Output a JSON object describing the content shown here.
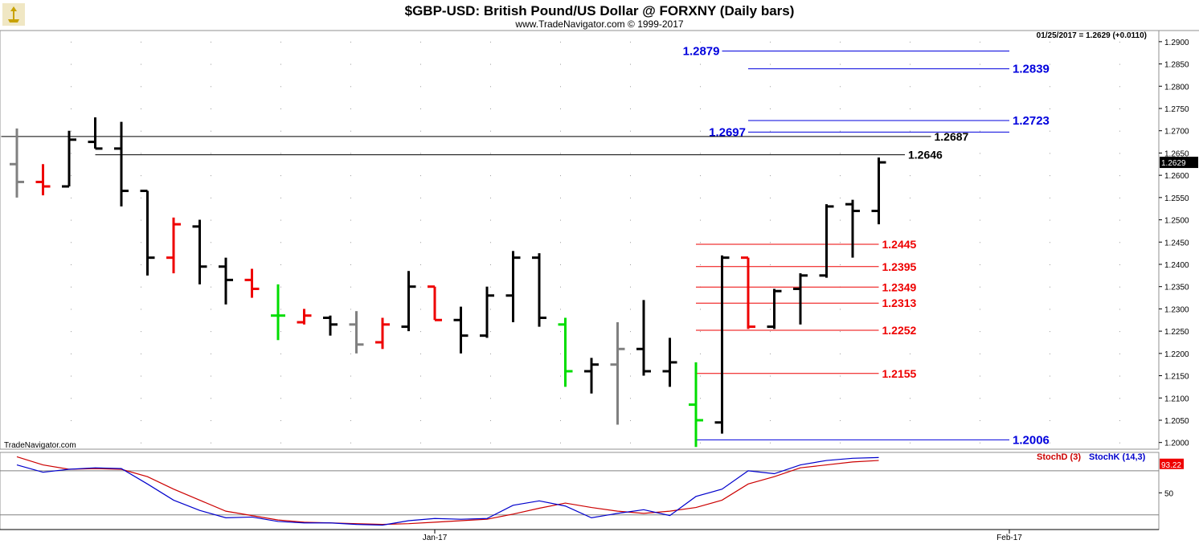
{
  "header": {
    "title": "$GBP-USD:  British Pound/US Dollar @ FORXNY  (Daily bars)",
    "copyright": "www.TradeNavigator.com © 1999-2017",
    "quote": "01/25/2017 = 1.2629 (+0.0110)",
    "watermark": "TradeNavigator.com"
  },
  "colors": {
    "up": "#000000",
    "down": "#ee0000",
    "neutral": "#808080",
    "green": "#00dd00",
    "blue": "#0000dd",
    "red": "#ee0000",
    "stochD": "#cc0000",
    "stochK": "#0000cc"
  },
  "chart_data": {
    "type": "ohlc",
    "ylim": [
      1.1985,
      1.2925
    ],
    "y_ticks": [
      "1.2000",
      "1.2050",
      "1.2100",
      "1.2150",
      "1.2200",
      "1.2250",
      "1.2300",
      "1.2350",
      "1.2400",
      "1.2450",
      "1.2500",
      "1.2550",
      "1.2600",
      "1.2650",
      "1.2700",
      "1.2750",
      "1.2800",
      "1.2850",
      "1.2900"
    ],
    "last_price": "1.2629",
    "x_labels": [
      {
        "label": "Jan-17",
        "bar": 16
      },
      {
        "label": "Feb-17",
        "bar": 38
      }
    ],
    "bars": [
      {
        "o": 1.2625,
        "h": 1.2705,
        "l": 1.255,
        "c": 1.2585,
        "color": "neutral"
      },
      {
        "o": 1.2585,
        "h": 1.2625,
        "l": 1.2555,
        "c": 1.2575,
        "color": "down"
      },
      {
        "o": 1.2575,
        "h": 1.27,
        "l": 1.2575,
        "c": 1.268,
        "color": "up"
      },
      {
        "o": 1.2675,
        "h": 1.273,
        "l": 1.266,
        "c": 1.266,
        "color": "up"
      },
      {
        "o": 1.266,
        "h": 1.272,
        "l": 1.253,
        "c": 1.2565,
        "color": "up"
      },
      {
        "o": 1.2565,
        "h": 1.2565,
        "l": 1.2375,
        "c": 1.2415,
        "color": "up"
      },
      {
        "o": 1.2415,
        "h": 1.2505,
        "l": 1.238,
        "c": 1.249,
        "color": "down"
      },
      {
        "o": 1.2485,
        "h": 1.25,
        "l": 1.2355,
        "c": 1.2395,
        "color": "up"
      },
      {
        "o": 1.2395,
        "h": 1.2415,
        "l": 1.231,
        "c": 1.2365,
        "color": "up"
      },
      {
        "o": 1.2365,
        "h": 1.239,
        "l": 1.2325,
        "c": 1.2345,
        "color": "down"
      },
      {
        "o": 1.2285,
        "h": 1.2355,
        "l": 1.223,
        "c": 1.2285,
        "color": "green"
      },
      {
        "o": 1.227,
        "h": 1.23,
        "l": 1.2265,
        "c": 1.2285,
        "color": "down"
      },
      {
        "o": 1.228,
        "h": 1.2285,
        "l": 1.224,
        "c": 1.2265,
        "color": "up"
      },
      {
        "o": 1.2265,
        "h": 1.2295,
        "l": 1.22,
        "c": 1.222,
        "color": "neutral"
      },
      {
        "o": 1.2225,
        "h": 1.228,
        "l": 1.221,
        "c": 1.2265,
        "color": "down"
      },
      {
        "o": 1.226,
        "h": 1.2385,
        "l": 1.225,
        "c": 1.235,
        "color": "up"
      },
      {
        "o": 1.235,
        "h": 1.235,
        "l": 1.2275,
        "c": 1.2275,
        "color": "down"
      },
      {
        "o": 1.2275,
        "h": 1.2305,
        "l": 1.22,
        "c": 1.224,
        "color": "up"
      },
      {
        "o": 1.224,
        "h": 1.235,
        "l": 1.2235,
        "c": 1.233,
        "color": "up"
      },
      {
        "o": 1.233,
        "h": 1.243,
        "l": 1.227,
        "c": 1.2415,
        "color": "up"
      },
      {
        "o": 1.2415,
        "h": 1.2425,
        "l": 1.226,
        "c": 1.228,
        "color": "up"
      },
      {
        "o": 1.2265,
        "h": 1.228,
        "l": 1.2125,
        "c": 1.216,
        "color": "green"
      },
      {
        "o": 1.216,
        "h": 1.219,
        "l": 1.211,
        "c": 1.2175,
        "color": "up"
      },
      {
        "o": 1.2175,
        "h": 1.227,
        "l": 1.204,
        "c": 1.221,
        "color": "neutral"
      },
      {
        "o": 1.221,
        "h": 1.232,
        "l": 1.215,
        "c": 1.216,
        "color": "up"
      },
      {
        "o": 1.216,
        "h": 1.2235,
        "l": 1.2125,
        "c": 1.218,
        "color": "up"
      },
      {
        "o": 1.2085,
        "h": 1.218,
        "l": 1.199,
        "c": 1.205,
        "color": "green"
      },
      {
        "o": 1.2045,
        "h": 1.242,
        "l": 1.202,
        "c": 1.2415,
        "color": "up"
      },
      {
        "o": 1.2415,
        "h": 1.2415,
        "l": 1.2255,
        "c": 1.226,
        "color": "down"
      },
      {
        "o": 1.226,
        "h": 1.2345,
        "l": 1.2255,
        "c": 1.234,
        "color": "up"
      },
      {
        "o": 1.2345,
        "h": 1.238,
        "l": 1.2265,
        "c": 1.2375,
        "color": "up"
      },
      {
        "o": 1.2375,
        "h": 1.2535,
        "l": 1.237,
        "c": 1.253,
        "color": "up"
      },
      {
        "o": 1.2535,
        "h": 1.2545,
        "l": 1.2415,
        "c": 1.252,
        "color": "up"
      },
      {
        "o": 1.252,
        "h": 1.264,
        "l": 1.249,
        "c": 1.2629,
        "color": "up"
      }
    ],
    "levels": [
      {
        "value": 1.2879,
        "label": "1.2879",
        "color": "blue",
        "from_bar": 27,
        "to_bar": 38,
        "label_side": "left"
      },
      {
        "value": 1.2839,
        "label": "1.2839",
        "color": "blue",
        "from_bar": 28,
        "to_bar": 38,
        "label_side": "right"
      },
      {
        "value": 1.2723,
        "label": "1.2723",
        "color": "blue",
        "from_bar": 28,
        "to_bar": 38,
        "label_side": "right"
      },
      {
        "value": 1.2697,
        "label": "1.2697",
        "color": "blue",
        "from_bar": 28,
        "to_bar": 38,
        "label_side": "left"
      },
      {
        "value": 1.2687,
        "label": "1.2687",
        "color": "up",
        "from_bar": -0.6,
        "to_bar": 35,
        "label_side": "right"
      },
      {
        "value": 1.2646,
        "label": "1.2646",
        "color": "up",
        "from_bar": 3,
        "to_bar": 34,
        "label_side": "right"
      },
      {
        "value": 1.2445,
        "label": "1.2445",
        "color": "red",
        "from_bar": 26,
        "to_bar": 33,
        "label_side": "right"
      },
      {
        "value": 1.2395,
        "label": "1.2395",
        "color": "red",
        "from_bar": 26,
        "to_bar": 33,
        "label_side": "right"
      },
      {
        "value": 1.2349,
        "label": "1.2349",
        "color": "red",
        "from_bar": 26,
        "to_bar": 33,
        "label_side": "right"
      },
      {
        "value": 1.2313,
        "label": "1.2313",
        "color": "red",
        "from_bar": 26,
        "to_bar": 33,
        "label_side": "right"
      },
      {
        "value": 1.2252,
        "label": "1.2252",
        "color": "red",
        "from_bar": 26,
        "to_bar": 33,
        "label_side": "right"
      },
      {
        "value": 1.2155,
        "label": "1.2155",
        "color": "red",
        "from_bar": 26,
        "to_bar": 33,
        "label_side": "right"
      },
      {
        "value": 1.2006,
        "label": "1.2006",
        "color": "blue",
        "from_bar": 26,
        "to_bar": 38,
        "label_side": "right"
      }
    ],
    "indicator": {
      "ylim": [
        0,
        105
      ],
      "y_ticks": [
        "50"
      ],
      "ref_lines": [
        80,
        20
      ],
      "last_value": "93.22",
      "legend": [
        {
          "label": "StochD (3)",
          "color": "stochD"
        },
        {
          "label": "StochK (14,3)",
          "color": "stochK"
        }
      ],
      "stochK": [
        88,
        78,
        82,
        84,
        83,
        62,
        40,
        26,
        16,
        17,
        11,
        9,
        9,
        7,
        6,
        12,
        15,
        14,
        15,
        33,
        39,
        32,
        16,
        22,
        27,
        19,
        45,
        55,
        80,
        76,
        88,
        94,
        97,
        98
      ],
      "stochD": [
        99,
        88,
        82,
        83,
        82,
        72,
        55,
        40,
        25,
        19,
        13,
        10,
        9,
        8,
        7,
        8,
        10,
        12,
        14,
        21,
        29,
        36,
        30,
        25,
        22,
        25,
        30,
        40,
        62,
        72,
        84,
        88,
        92,
        94
      ]
    }
  }
}
